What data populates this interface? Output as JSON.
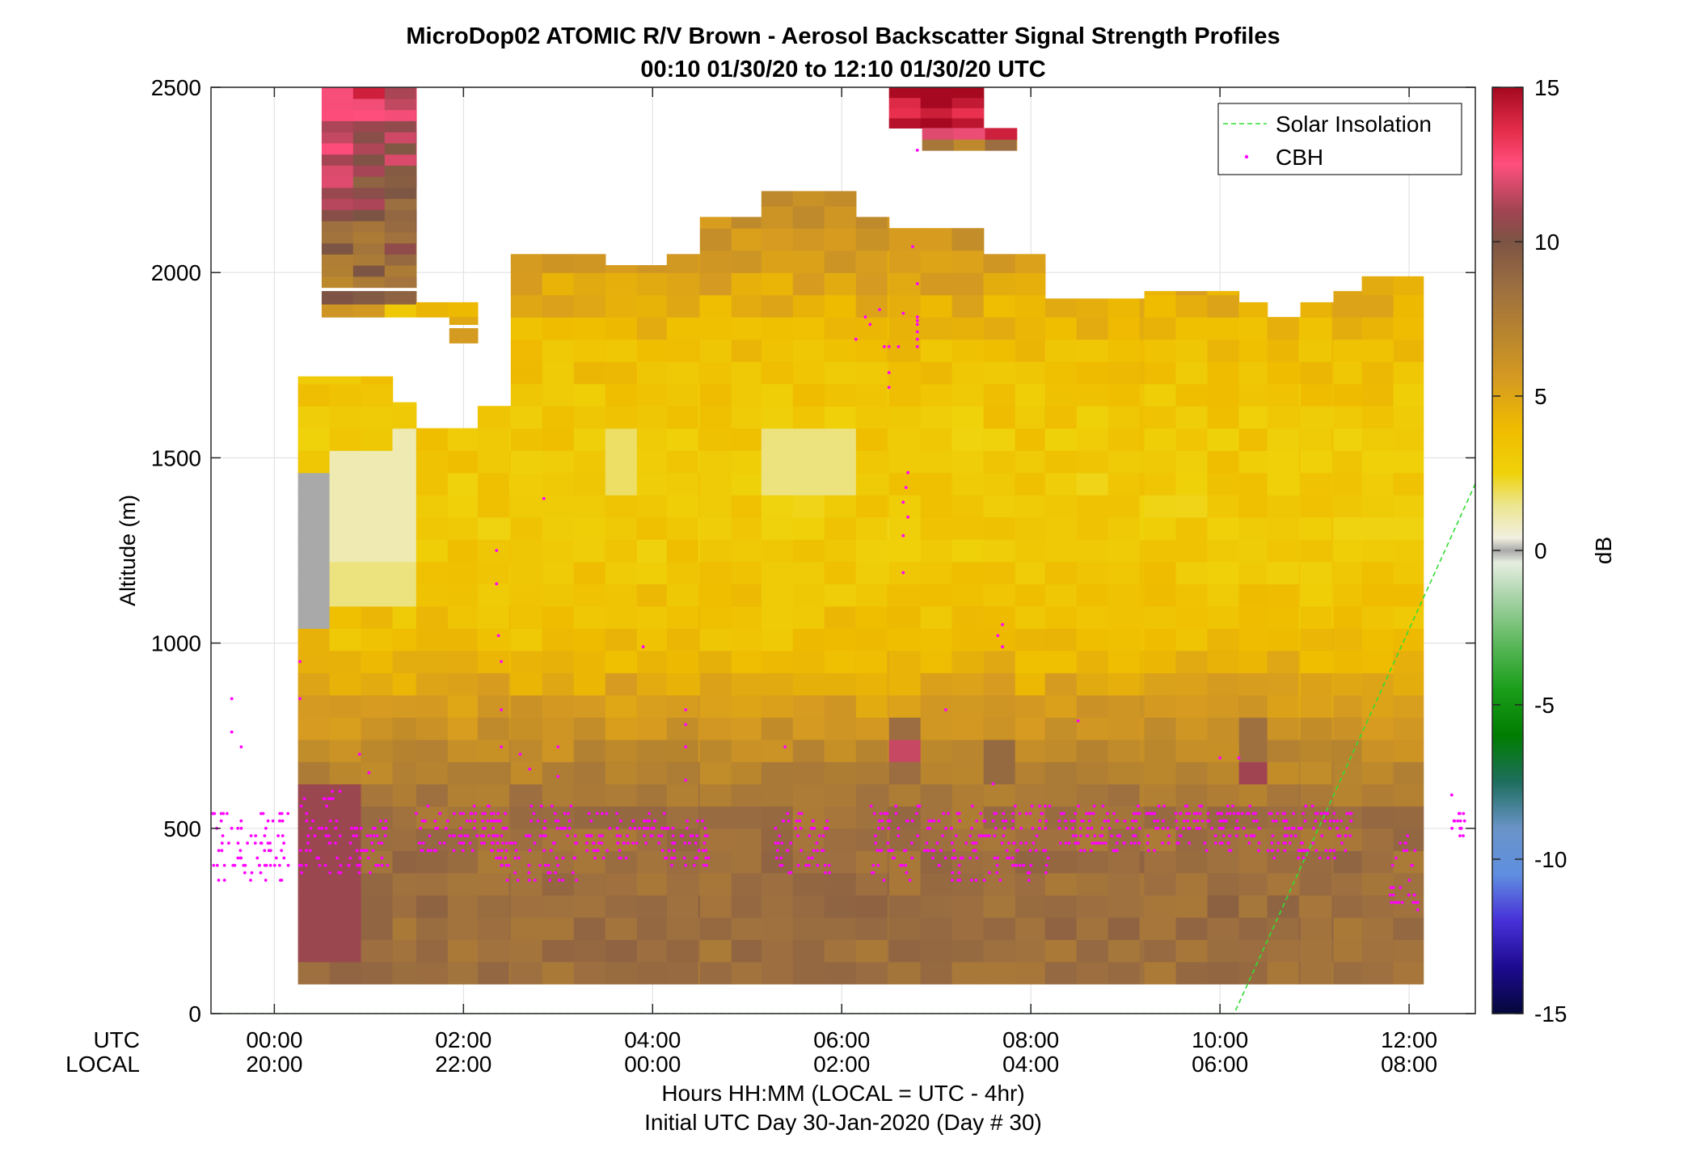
{
  "chart_data": {
    "type": "heatmap",
    "title": "MicroDop02 ATOMIC R/V Brown - Aerosol Backscatter Signal Strength Profiles",
    "subtitle": "00:10 01/30/20 to 12:10 01/30/20  UTC",
    "ylabel": "Altitude (m)",
    "xlabel": "Hours HH:MM  (LOCAL = UTC - 4hr)",
    "footer": "Initial UTC Day 30-Jan-2020 (Day # 30)",
    "x_row_labels": [
      "UTC",
      "LOCAL"
    ],
    "xlim_hours": [
      -0.67,
      12.7
    ],
    "ylim": [
      0,
      2500
    ],
    "y_ticks": [
      0,
      500,
      1000,
      1500,
      2000,
      2500
    ],
    "x_ticks": [
      {
        "hour": 0,
        "utc": "00:00",
        "local": "20:00"
      },
      {
        "hour": 2,
        "utc": "02:00",
        "local": "22:00"
      },
      {
        "hour": 4,
        "utc": "04:00",
        "local": "00:00"
      },
      {
        "hour": 6,
        "utc": "06:00",
        "local": "02:00"
      },
      {
        "hour": 8,
        "utc": "08:00",
        "local": "04:00"
      },
      {
        "hour": 10,
        "utc": "10:00",
        "local": "06:00"
      },
      {
        "hour": 12,
        "utc": "12:00",
        "local": "08:00"
      }
    ],
    "grid": true,
    "legend": {
      "position": "top-right",
      "entries": [
        {
          "label": "Solar Insolation",
          "color": "#33dd33",
          "style": "dashed"
        },
        {
          "label": "CBH",
          "color": "#ff00ff",
          "style": "point"
        }
      ]
    },
    "colorbar": {
      "label": "dB",
      "range": [
        -15,
        15
      ],
      "ticks": [
        15,
        10,
        5,
        0,
        -5,
        -10,
        -15
      ],
      "stops": [
        {
          "v": -15,
          "c": "#04083a"
        },
        {
          "v": -13.5,
          "c": "#1d0a90"
        },
        {
          "v": -12,
          "c": "#4830d8"
        },
        {
          "v": -10.5,
          "c": "#5f8ee0"
        },
        {
          "v": -9,
          "c": "#6a94c8"
        },
        {
          "v": -7.5,
          "c": "#1e6e5e"
        },
        {
          "v": -6,
          "c": "#007d00"
        },
        {
          "v": -4.5,
          "c": "#1a9e1a"
        },
        {
          "v": -3,
          "c": "#5cb85c"
        },
        {
          "v": -1.5,
          "c": "#a9d3a9"
        },
        {
          "v": -0.4,
          "c": "#e6eee0"
        },
        {
          "v": 0,
          "c": "#a9a9a9"
        },
        {
          "v": 0.4,
          "c": "#f1efe0"
        },
        {
          "v": 1.5,
          "c": "#ece58c"
        },
        {
          "v": 2.5,
          "c": "#efd20a"
        },
        {
          "v": 4,
          "c": "#efbb00"
        },
        {
          "v": 5.5,
          "c": "#d69b20"
        },
        {
          "v": 7,
          "c": "#b8852e"
        },
        {
          "v": 8.5,
          "c": "#9d6f40"
        },
        {
          "v": 10,
          "c": "#7c5444"
        },
        {
          "v": 11,
          "c": "#a14452"
        },
        {
          "v": 12.5,
          "c": "#ff4f7d"
        },
        {
          "v": 13.5,
          "c": "#e8304e"
        },
        {
          "v": 15,
          "c": "#a50820"
        }
      ]
    },
    "backscatter": {
      "units": "dB",
      "bin_width_hours": 0.333,
      "bin_height_m": 60,
      "profile_tops_m": [
        {
          "start": 0.25,
          "end": 1.25,
          "top": 1720
        },
        {
          "start": 1.25,
          "end": 1.5,
          "top": 1650
        },
        {
          "start": 1.5,
          "end": 2.15,
          "top": 1580
        },
        {
          "start": 2.15,
          "end": 2.5,
          "top": 1640
        },
        {
          "start": 2.5,
          "end": 3.5,
          "top": 2050
        },
        {
          "start": 3.5,
          "end": 4.15,
          "top": 2020
        },
        {
          "start": 4.15,
          "end": 4.5,
          "top": 2050
        },
        {
          "start": 4.5,
          "end": 5.15,
          "top": 2150
        },
        {
          "start": 5.15,
          "end": 6.15,
          "top": 2220
        },
        {
          "start": 6.15,
          "end": 6.5,
          "top": 2150
        },
        {
          "start": 6.5,
          "end": 7.5,
          "top": 2120
        },
        {
          "start": 7.5,
          "end": 8.15,
          "top": 2050
        },
        {
          "start": 8.15,
          "end": 9.2,
          "top": 1930
        },
        {
          "start": 9.2,
          "end": 10.2,
          "top": 1950
        },
        {
          "start": 10.2,
          "end": 10.5,
          "top": 1920
        },
        {
          "start": 10.5,
          "end": 10.85,
          "top": 1880
        },
        {
          "start": 10.85,
          "end": 11.2,
          "top": 1920
        },
        {
          "start": 11.2,
          "end": 11.5,
          "top": 1950
        },
        {
          "start": 11.5,
          "end": 12.15,
          "top": 1990
        }
      ],
      "profile_bottom_m": 80,
      "typical_db_by_altitude": [
        {
          "alt": 80,
          "db": 8.3
        },
        {
          "alt": 300,
          "db": 8.6
        },
        {
          "alt": 550,
          "db": 8.2
        },
        {
          "alt": 750,
          "db": 6.2
        },
        {
          "alt": 1000,
          "db": 3.8
        },
        {
          "alt": 1300,
          "db": 3.0
        },
        {
          "alt": 1600,
          "db": 3.2
        },
        {
          "alt": 1800,
          "db": 3.8
        },
        {
          "alt": 2000,
          "db": 5.2
        },
        {
          "alt": 2250,
          "db": 6.8
        }
      ],
      "patches": [
        {
          "t0": 0.25,
          "t1": 0.85,
          "a0": 120,
          "a1": 600,
          "db": 10.8
        },
        {
          "t0": 0.25,
          "t1": 0.6,
          "a0": 1050,
          "a1": 1450,
          "db": 0.0
        },
        {
          "t0": 0.5,
          "t1": 1.5,
          "a0": 1250,
          "a1": 1500,
          "db": 1.0
        },
        {
          "t0": 0.5,
          "t1": 1.5,
          "a0": 1100,
          "a1": 1250,
          "db": 1.6
        },
        {
          "t0": 1.2,
          "t1": 1.5,
          "a0": 1450,
          "a1": 1560,
          "db": 1.0
        },
        {
          "t0": 5.15,
          "t1": 6.15,
          "a0": 1400,
          "a1": 1560,
          "db": 1.6
        },
        {
          "t0": 3.5,
          "t1": 3.85,
          "a0": 1420,
          "a1": 1560,
          "db": 1.8
        },
        {
          "t0": 6.5,
          "t1": 6.85,
          "a0": 640,
          "a1": 800,
          "db": 8.6
        },
        {
          "t0": 6.5,
          "t1": 6.85,
          "a0": 680,
          "a1": 720,
          "db": 11.6
        },
        {
          "t0": 7.5,
          "t1": 7.85,
          "a0": 620,
          "a1": 720,
          "db": 8.8
        },
        {
          "t0": 10.2,
          "t1": 10.5,
          "a0": 650,
          "a1": 800,
          "db": 8.4
        },
        {
          "t0": 10.2,
          "t1": 10.5,
          "a0": 630,
          "a1": 660,
          "db": 11.0
        }
      ],
      "upper_layers": [
        {
          "t0": 0.5,
          "t1": 1.5,
          "a0": 1960,
          "a1": 2500,
          "db_bottom": 8.2,
          "db_top": 12.5
        },
        {
          "t0": 0.5,
          "t1": 1.5,
          "a0": 1880,
          "a1": 1950,
          "db_bottom": 4.5,
          "db_top": 9.5
        },
        {
          "t0": 1.5,
          "t1": 2.15,
          "a0": 1880,
          "a1": 1920,
          "db_bottom": 4.2,
          "db_top": 4.2
        },
        {
          "t0": 1.85,
          "t1": 2.15,
          "a0": 1810,
          "a1": 1850,
          "db_bottom": 4.2,
          "db_top": 4.2
        },
        {
          "t0": 1.85,
          "t1": 2.15,
          "a0": 1860,
          "a1": 1880,
          "db_bottom": 4.2,
          "db_top": 4.2
        },
        {
          "t0": 6.5,
          "t1": 7.5,
          "a0": 2390,
          "a1": 2500,
          "db_bottom": 15.0,
          "db_top": 15.0
        },
        {
          "t0": 6.85,
          "t1": 7.85,
          "a0": 2330,
          "a1": 2390,
          "db_bottom": 7.0,
          "db_top": 12.5
        }
      ]
    },
    "cbh_points": {
      "units": "m",
      "clusters": [
        {
          "t0": -0.65,
          "t1": 0.15,
          "base": 350,
          "top": 550
        },
        {
          "t0": 0.25,
          "t1": 0.7,
          "base": 380,
          "top": 600
        },
        {
          "t0": 0.7,
          "t1": 1.2,
          "base": 380,
          "top": 520
        },
        {
          "t0": 1.5,
          "t1": 2.5,
          "base": 430,
          "top": 560
        },
        {
          "t0": 2.3,
          "t1": 3.2,
          "base": 360,
          "top": 560
        },
        {
          "t0": 3.3,
          "t1": 4.2,
          "base": 420,
          "top": 540
        },
        {
          "t0": 4.2,
          "t1": 4.6,
          "base": 400,
          "top": 520
        },
        {
          "t0": 5.3,
          "t1": 5.9,
          "base": 380,
          "top": 540
        },
        {
          "t0": 6.3,
          "t1": 8.2,
          "base": 360,
          "top": 560
        },
        {
          "t0": 8.3,
          "t1": 10.4,
          "base": 440,
          "top": 560
        },
        {
          "t0": 10.4,
          "t1": 11.4,
          "base": 420,
          "top": 560
        },
        {
          "t0": 11.8,
          "t1": 12.1,
          "base": 280,
          "top": 480
        },
        {
          "t0": 12.45,
          "t1": 12.6,
          "base": 470,
          "top": 540
        }
      ],
      "isolated": [
        [
          -0.45,
          850
        ],
        [
          -0.45,
          760
        ],
        [
          -0.35,
          720
        ],
        [
          0.27,
          950
        ],
        [
          0.27,
          850
        ],
        [
          0.9,
          700
        ],
        [
          1.0,
          650
        ],
        [
          2.35,
          1250
        ],
        [
          2.35,
          1160
        ],
        [
          2.37,
          1020
        ],
        [
          2.4,
          950
        ],
        [
          2.4,
          820
        ],
        [
          2.4,
          720
        ],
        [
          2.6,
          700
        ],
        [
          2.85,
          1390
        ],
        [
          2.7,
          660
        ],
        [
          3.0,
          720
        ],
        [
          3.0,
          640
        ],
        [
          3.9,
          990
        ],
        [
          4.35,
          820
        ],
        [
          4.35,
          780
        ],
        [
          4.35,
          720
        ],
        [
          4.35,
          630
        ],
        [
          5.4,
          720
        ],
        [
          6.25,
          1880
        ],
        [
          6.15,
          1820
        ],
        [
          6.3,
          1860
        ],
        [
          6.4,
          1900
        ],
        [
          6.45,
          1800
        ],
        [
          6.5,
          1730
        ],
        [
          6.5,
          1690
        ],
        [
          6.5,
          1800
        ],
        [
          6.65,
          1890
        ],
        [
          6.6,
          1800
        ],
        [
          6.7,
          1460
        ],
        [
          6.68,
          1420
        ],
        [
          6.65,
          1380
        ],
        [
          6.7,
          1340
        ],
        [
          6.65,
          1290
        ],
        [
          6.65,
          1190
        ],
        [
          6.75,
          2070
        ],
        [
          6.8,
          1970
        ],
        [
          6.8,
          1880
        ],
        [
          6.8,
          1860
        ],
        [
          6.8,
          1840
        ],
        [
          6.8,
          1820
        ],
        [
          6.8,
          1800
        ],
        [
          6.8,
          1870
        ],
        [
          6.8,
          2330
        ],
        [
          7.1,
          820
        ],
        [
          7.7,
          1050
        ],
        [
          7.65,
          1020
        ],
        [
          7.7,
          990
        ],
        [
          7.6,
          620
        ],
        [
          8.5,
          790
        ],
        [
          10.0,
          690
        ],
        [
          10.2,
          690
        ],
        [
          11.8,
          320
        ],
        [
          12.45,
          590
        ]
      ]
    },
    "solar_insolation": {
      "zero_until_hour": 10.15,
      "points": [
        [
          10.15,
          0
        ],
        [
          12.7,
          1430
        ]
      ]
    }
  }
}
